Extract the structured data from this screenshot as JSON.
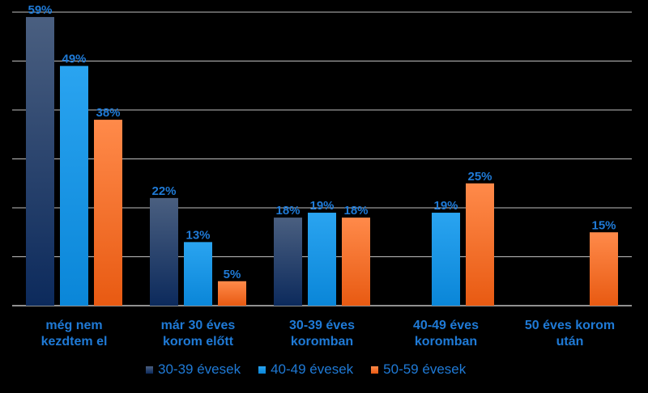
{
  "chart_data": {
    "type": "bar",
    "title": "",
    "xlabel": "",
    "ylabel": "",
    "ylim": [
      0,
      60
    ],
    "grid": true,
    "legend_position": "bottom",
    "categories": [
      "még nem\nkezdtem el",
      "már 30 éves\nkorom előtt",
      "30-39 éves\nkoromban",
      "40-49 éves\nkoromban",
      "50 éves korom\nután"
    ],
    "series": [
      {
        "name": "30-39 évesek",
        "values": [
          59,
          22,
          18,
          null,
          null
        ],
        "labels": [
          "59%",
          "22%",
          "18%",
          "",
          ""
        ]
      },
      {
        "name": "40-49 évesek",
        "values": [
          49,
          13,
          19,
          19,
          null
        ],
        "labels": [
          "49%",
          "13%",
          "19%",
          "19%",
          ""
        ]
      },
      {
        "name": "50-59 évesek",
        "values": [
          38,
          5,
          18,
          25,
          15
        ],
        "labels": [
          "38%",
          "5%",
          "18%",
          "25%",
          "15%"
        ]
      }
    ]
  },
  "colors": {
    "background": "#000000",
    "grid": "#bfbfbf",
    "label_text": "#1f7ad6",
    "series": [
      {
        "top": "#4a5f80",
        "bottom": "#0c2a5c"
      },
      {
        "top": "#2aa4f0",
        "bottom": "#0a86d8"
      },
      {
        "top": "#ff8a4a",
        "bottom": "#e85a12"
      }
    ]
  }
}
